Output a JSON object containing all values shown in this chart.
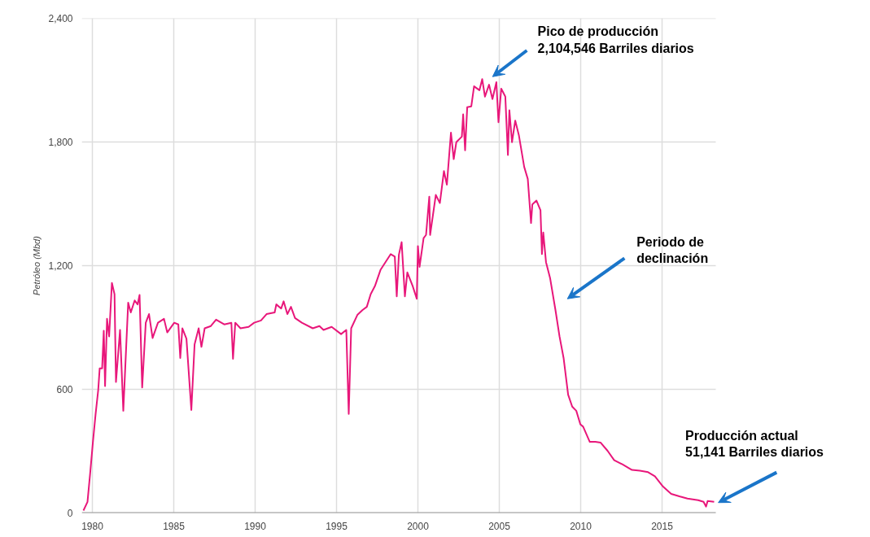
{
  "chart_data": {
    "type": "line",
    "ylabel": "Petróleo (Mbd)",
    "xlim": [
      1979.35,
      2018.3
    ],
    "ylim": [
      0,
      2400
    ],
    "xticks": [
      1980,
      1985,
      1990,
      1995,
      2000,
      2005,
      2010,
      2015
    ],
    "yticks": [
      {
        "value": 0,
        "label": "0"
      },
      {
        "value": 600,
        "label": "600"
      },
      {
        "value": 1200,
        "label": "1,200"
      },
      {
        "value": 1800,
        "label": "1,800"
      },
      {
        "value": 2400,
        "label": "2,400"
      }
    ],
    "grid": true,
    "line_style": "solid",
    "annotations": [
      "Pico de producción\n2,104,546 Barriles diarios",
      "Periodo de\ndeclinación",
      "Producción actual\n51,141 Barriles diarios"
    ],
    "series": [
      {
        "color": "#e8177a",
        "x": [
          1979.45,
          1979.7,
          1979.87,
          1980.03,
          1980.2,
          1980.36,
          1980.45,
          1980.6,
          1980.7,
          1980.78,
          1980.9,
          1981.03,
          1981.2,
          1981.36,
          1981.45,
          1981.7,
          1981.9,
          1982.2,
          1982.36,
          1982.6,
          1982.78,
          1982.9,
          1983.06,
          1983.28,
          1983.48,
          1983.7,
          1984.03,
          1984.4,
          1984.6,
          1985.03,
          1985.28,
          1985.4,
          1985.53,
          1985.78,
          1986.08,
          1986.28,
          1986.53,
          1986.7,
          1986.9,
          1987.28,
          1987.6,
          1988.1,
          1988.54,
          1988.64,
          1988.78,
          1989.1,
          1989.6,
          1989.94,
          1990.36,
          1990.7,
          1991.2,
          1991.3,
          1991.6,
          1991.75,
          1991.98,
          1992.2,
          1992.45,
          1992.87,
          1993.54,
          1993.95,
          1994.2,
          1994.7,
          1995.28,
          1995.6,
          1995.75,
          1995.9,
          1996.28,
          1996.6,
          1996.86,
          1997.1,
          1997.36,
          1997.7,
          1998.33,
          1998.58,
          1998.7,
          1998.83,
          1999.0,
          1999.2,
          1999.35,
          1999.68,
          1999.93,
          2000.0,
          2000.1,
          2000.35,
          2000.5,
          2000.7,
          2000.75,
          2001.1,
          2001.35,
          2001.6,
          2001.78,
          2002.03,
          2002.2,
          2002.36,
          2002.7,
          2002.78,
          2002.9,
          2003.03,
          2003.28,
          2003.45,
          2003.78,
          2003.95,
          2004.12,
          2004.37,
          2004.58,
          2004.82,
          2004.95,
          2005.12,
          2005.37,
          2005.53,
          2005.62,
          2005.78,
          2005.98,
          2006.2,
          2006.53,
          2006.75,
          2006.95,
          2007.03,
          2007.28,
          2007.53,
          2007.62,
          2007.7,
          2007.87,
          2008.12,
          2008.45,
          2008.7,
          2008.95,
          2009.23,
          2009.48,
          2009.73,
          2009.98,
          2010.15,
          2010.56,
          2010.9,
          2011.23,
          2011.65,
          2012.06,
          2012.56,
          2013.15,
          2013.64,
          2014.14,
          2014.56,
          2015.06,
          2015.56,
          2016.06,
          2016.56,
          2017.22,
          2017.55,
          2017.7,
          2017.8,
          2018.2
        ],
        "values": [
          12,
          54,
          198,
          341,
          481,
          597,
          702,
          702,
          884,
          616,
          942,
          857,
          1116,
          1062,
          636,
          888,
          496,
          1020,
          973,
          1031,
          1012,
          1058,
          609,
          923,
          965,
          849,
          923,
          942,
          876,
          923,
          915,
          752,
          896,
          845,
          500,
          818,
          896,
          806,
          896,
          907,
          938,
          915,
          923,
          748,
          923,
          896,
          903,
          923,
          934,
          965,
          973,
          1012,
          992,
          1027,
          965,
          1000,
          946,
          923,
          896,
          907,
          888,
          903,
          868,
          888,
          481,
          896,
          961,
          985,
          1000,
          1062,
          1101,
          1179,
          1256,
          1244,
          1051,
          1252,
          1314,
          1051,
          1167,
          1101,
          1039,
          1295,
          1194,
          1334,
          1349,
          1535,
          1349,
          1543,
          1504,
          1659,
          1593,
          1845,
          1717,
          1799,
          1826,
          1934,
          1760,
          1969,
          1973,
          2070,
          2051,
          2105,
          2020,
          2078,
          2008,
          2090,
          1896,
          2059,
          2020,
          1737,
          1954,
          1799,
          1904,
          1834,
          1679,
          1621,
          1407,
          1497,
          1516,
          1469,
          1256,
          1361,
          1217,
          1140,
          985,
          857,
          752,
          574,
          516,
          496,
          430,
          419,
          345,
          345,
          341,
          302,
          256,
          236,
          209,
          205,
          198,
          178,
          128,
          93,
          81,
          70,
          62,
          54,
          31,
          58,
          54
        ]
      }
    ]
  }
}
